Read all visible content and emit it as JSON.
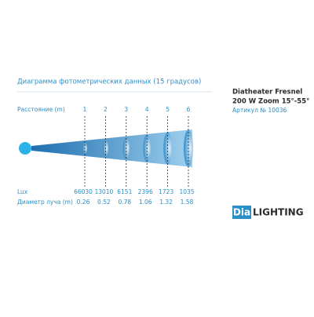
{
  "title": "Диаграмма фотометрических данных (15 градусов)",
  "product": {
    "name": "Diatheater Fresnel",
    "model": "200 W Zoom 15°-55°",
    "article": "Артикул № 10036"
  },
  "table": {
    "distance_label": "Расстояние (m)",
    "lux_label": "Lux",
    "diameter_label": "Диаметр луча (m)",
    "distances": [
      "1",
      "2",
      "3",
      "4",
      "5",
      "6"
    ],
    "lux": [
      "66030",
      "13010",
      "6151",
      "2396",
      "1723",
      "1035"
    ],
    "diameters": [
      "0.26",
      "0.52",
      "0.78",
      "1.06",
      "1.32",
      "1.58"
    ]
  },
  "logo": {
    "left": "Dia",
    "right": "LIGHTING"
  }
}
